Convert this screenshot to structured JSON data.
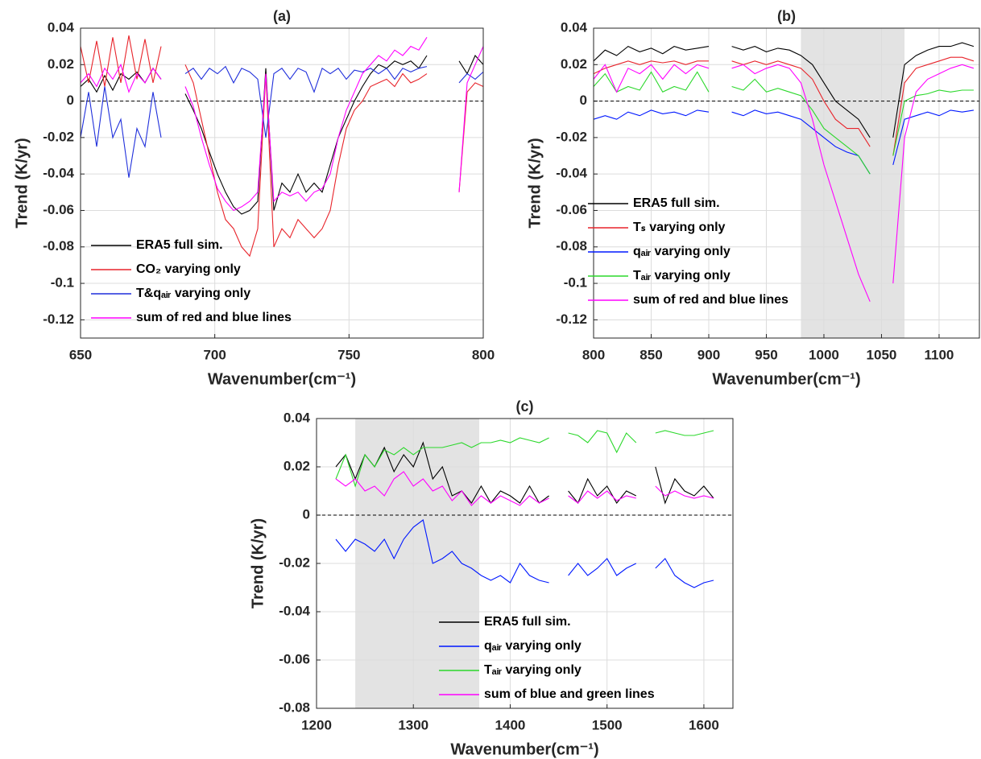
{
  "chart_data": [
    {
      "type": "line",
      "title": "(a)",
      "xlabel": "Wavenumber(cm⁻¹)",
      "ylabel": "Trend (K/yr)",
      "xlim": [
        650,
        800
      ],
      "xticks": [
        650,
        700,
        750,
        800
      ],
      "ylim": [
        -0.13,
        0.04
      ],
      "yticks": [
        -0.12,
        -0.1,
        -0.08,
        -0.06,
        -0.04,
        -0.02,
        0,
        0.02,
        0.04
      ],
      "grid": true,
      "hline": 0,
      "legend": "lower left",
      "x": [
        650,
        653,
        656,
        659,
        662,
        665,
        668,
        671,
        674,
        677,
        680,
        683,
        686,
        689,
        692,
        695,
        698,
        701,
        704,
        707,
        710,
        713,
        716,
        719,
        722,
        725,
        728,
        731,
        734,
        737,
        740,
        743,
        746,
        749,
        752,
        755,
        758,
        761,
        764,
        767,
        770,
        773,
        776,
        779,
        782,
        785,
        788,
        791,
        794,
        797,
        800
      ],
      "series": [
        {
          "name": "ERA5 full sim.",
          "color": "#000000",
          "values": [
            0.008,
            0.012,
            0.005,
            0.014,
            0.006,
            0.015,
            0.012,
            0.016,
            0.01,
            0.018,
            0.012,
            null,
            null,
            0.004,
            -0.005,
            -0.015,
            -0.028,
            -0.04,
            -0.05,
            -0.058,
            -0.062,
            -0.06,
            -0.055,
            0.018,
            -0.06,
            -0.045,
            -0.05,
            -0.04,
            -0.05,
            -0.045,
            -0.05,
            -0.035,
            -0.02,
            -0.01,
            0.0,
            0.008,
            0.015,
            0.02,
            0.018,
            0.022,
            0.02,
            0.022,
            0.018,
            0.025,
            null,
            null,
            null,
            0.022,
            0.015,
            0.025,
            0.02
          ]
        },
        {
          "name": "CO₂ varying only",
          "color": "#e8242b",
          "values": [
            0.03,
            0.01,
            0.033,
            0.008,
            0.035,
            0.01,
            0.036,
            0.012,
            0.034,
            0.01,
            0.03,
            null,
            null,
            0.02,
            0.01,
            -0.01,
            -0.03,
            -0.05,
            -0.065,
            -0.07,
            -0.08,
            -0.085,
            -0.07,
            0.015,
            -0.08,
            -0.07,
            -0.075,
            -0.065,
            -0.07,
            -0.075,
            -0.07,
            -0.06,
            -0.035,
            -0.015,
            -0.005,
            0.0,
            0.008,
            0.01,
            0.012,
            0.008,
            0.015,
            0.01,
            0.012,
            0.015,
            null,
            null,
            null,
            -0.05,
            0.005,
            0.01,
            0.008
          ]
        },
        {
          "name": "T&qₐᵢᵣ varying only",
          "color": "#1f2fdb",
          "values": [
            -0.02,
            0.005,
            -0.025,
            0.008,
            -0.02,
            -0.01,
            -0.042,
            -0.015,
            -0.025,
            0.005,
            -0.02,
            null,
            null,
            0.015,
            0.018,
            0.012,
            0.018,
            0.015,
            0.019,
            0.01,
            0.018,
            0.016,
            0.012,
            -0.02,
            0.015,
            0.018,
            0.012,
            0.018,
            0.016,
            0.005,
            0.018,
            0.015,
            0.018,
            0.012,
            0.017,
            0.016,
            0.018,
            0.015,
            0.018,
            0.012,
            0.018,
            0.016,
            0.018,
            0.019,
            null,
            null,
            null,
            0.01,
            0.015,
            0.012,
            0.016
          ]
        },
        {
          "name": "sum of red and blue lines",
          "color": "#ff00ff",
          "values": [
            0.01,
            0.015,
            0.008,
            0.018,
            0.012,
            0.02,
            0.005,
            0.015,
            0.01,
            0.018,
            0.012,
            null,
            null,
            0.008,
            -0.003,
            -0.02,
            -0.035,
            -0.048,
            -0.055,
            -0.06,
            -0.058,
            -0.055,
            -0.05,
            0.015,
            -0.055,
            -0.05,
            -0.052,
            -0.05,
            -0.055,
            -0.05,
            -0.048,
            -0.04,
            -0.02,
            -0.005,
            0.005,
            0.015,
            0.02,
            0.025,
            0.022,
            0.028,
            0.025,
            0.03,
            0.028,
            0.035,
            null,
            null,
            null,
            -0.05,
            0.01,
            0.02,
            0.03
          ]
        }
      ]
    },
    {
      "type": "line",
      "title": "(b)",
      "xlabel": "Wavenumber(cm⁻¹)",
      "ylabel": "Trend (K/yr)",
      "xlim": [
        800,
        1135
      ],
      "xticks": [
        800,
        850,
        900,
        950,
        1000,
        1050,
        1100
      ],
      "ylim": [
        -0.13,
        0.04
      ],
      "yticks": [
        -0.12,
        -0.1,
        -0.08,
        -0.06,
        -0.04,
        -0.02,
        0,
        0.02,
        0.04
      ],
      "grid": true,
      "hline": 0,
      "shade": [
        980,
        1070
      ],
      "legend": "center left",
      "x": [
        800,
        810,
        820,
        830,
        840,
        850,
        860,
        870,
        880,
        890,
        900,
        910,
        920,
        930,
        940,
        950,
        960,
        970,
        980,
        990,
        1000,
        1010,
        1020,
        1030,
        1040,
        1050,
        1060,
        1070,
        1080,
        1090,
        1100,
        1110,
        1120,
        1130
      ],
      "series": [
        {
          "name": "ERA5 full sim.",
          "color": "#000000",
          "values": [
            0.022,
            0.028,
            0.025,
            0.03,
            0.027,
            0.029,
            0.026,
            0.03,
            0.028,
            0.029,
            0.03,
            null,
            0.03,
            0.028,
            0.03,
            0.027,
            0.029,
            0.028,
            0.025,
            0.02,
            0.01,
            0.0,
            -0.005,
            -0.01,
            -0.02,
            null,
            -0.02,
            0.02,
            0.025,
            0.028,
            0.03,
            0.03,
            0.032,
            0.03
          ]
        },
        {
          "name": "Tₛ varying only",
          "color": "#e8242b",
          "values": [
            0.015,
            0.018,
            0.02,
            0.022,
            0.02,
            0.022,
            0.021,
            0.022,
            0.02,
            0.022,
            0.022,
            null,
            0.022,
            0.02,
            0.022,
            0.02,
            0.022,
            0.02,
            0.018,
            0.012,
            0.0,
            -0.01,
            -0.015,
            -0.015,
            -0.025,
            null,
            -0.03,
            0.01,
            0.018,
            0.02,
            0.022,
            0.024,
            0.024,
            0.022
          ]
        },
        {
          "name": "qₐᵢᵣ varying only",
          "color": "#0018ff",
          "values": [
            -0.01,
            -0.008,
            -0.01,
            -0.006,
            -0.008,
            -0.005,
            -0.007,
            -0.006,
            -0.008,
            -0.005,
            -0.006,
            null,
            -0.006,
            -0.008,
            -0.005,
            -0.007,
            -0.006,
            -0.008,
            -0.01,
            -0.015,
            -0.02,
            -0.025,
            -0.028,
            -0.03,
            -0.04,
            null,
            -0.035,
            -0.01,
            -0.008,
            -0.006,
            -0.008,
            -0.005,
            -0.006,
            -0.005
          ]
        },
        {
          "name": "Tₐᵢᵣ varying only",
          "color": "#2bd82b",
          "values": [
            0.008,
            0.015,
            0.005,
            0.008,
            0.006,
            0.016,
            0.005,
            0.008,
            0.006,
            0.016,
            0.005,
            null,
            0.008,
            0.006,
            0.012,
            0.005,
            0.007,
            0.005,
            0.003,
            -0.005,
            -0.015,
            -0.02,
            -0.025,
            -0.03,
            -0.04,
            null,
            -0.03,
            0.0,
            0.003,
            0.004,
            0.006,
            0.005,
            0.006,
            0.006
          ]
        },
        {
          "name": "sum of red and blue lines",
          "color": "#ff00ff",
          "values": [
            0.012,
            0.02,
            0.005,
            0.018,
            0.015,
            0.02,
            0.012,
            0.02,
            0.015,
            0.02,
            0.018,
            null,
            0.018,
            0.02,
            0.015,
            0.018,
            0.02,
            0.018,
            0.01,
            -0.01,
            -0.035,
            -0.055,
            -0.075,
            -0.095,
            -0.11,
            null,
            -0.1,
            -0.02,
            0.005,
            0.012,
            0.015,
            0.018,
            0.02,
            0.018
          ]
        }
      ]
    },
    {
      "type": "line",
      "title": "(c)",
      "xlabel": "Wavenumber(cm⁻¹)",
      "ylabel": "Trend (K/yr)",
      "xlim": [
        1200,
        1630
      ],
      "xticks": [
        1200,
        1300,
        1400,
        1500,
        1600
      ],
      "ylim": [
        -0.08,
        0.04
      ],
      "yticks": [
        -0.08,
        -0.06,
        -0.04,
        -0.02,
        0,
        0.02,
        0.04
      ],
      "grid": true,
      "hline": 0,
      "shade": [
        1240,
        1368
      ],
      "legend": "lower center",
      "x": [
        1220,
        1230,
        1240,
        1250,
        1260,
        1270,
        1280,
        1290,
        1300,
        1310,
        1320,
        1330,
        1340,
        1350,
        1360,
        1370,
        1380,
        1390,
        1400,
        1410,
        1420,
        1430,
        1440,
        1450,
        1460,
        1470,
        1480,
        1490,
        1500,
        1510,
        1520,
        1530,
        1540,
        1550,
        1560,
        1570,
        1580,
        1590,
        1600,
        1610
      ],
      "series": [
        {
          "name": "ERA5 full sim.",
          "color": "#000000",
          "values": [
            0.02,
            0.025,
            0.015,
            0.025,
            0.02,
            0.028,
            0.018,
            0.025,
            0.02,
            0.03,
            0.015,
            0.02,
            0.008,
            0.01,
            0.005,
            0.012,
            0.005,
            0.01,
            0.008,
            0.005,
            0.012,
            0.005,
            0.008,
            null,
            0.01,
            0.005,
            0.015,
            0.008,
            0.012,
            0.005,
            0.01,
            0.008,
            null,
            0.02,
            0.005,
            0.015,
            0.01,
            0.008,
            0.012,
            0.007
          ]
        },
        {
          "name": "qₐᵢᵣ varying only",
          "color": "#0018ff",
          "values": [
            -0.01,
            -0.015,
            -0.01,
            -0.012,
            -0.015,
            -0.01,
            -0.018,
            -0.01,
            -0.005,
            -0.002,
            -0.02,
            -0.018,
            -0.015,
            -0.02,
            -0.022,
            -0.025,
            -0.027,
            -0.025,
            -0.028,
            -0.02,
            -0.025,
            -0.027,
            -0.028,
            null,
            -0.025,
            -0.02,
            -0.025,
            -0.022,
            -0.018,
            -0.025,
            -0.022,
            -0.02,
            null,
            -0.022,
            -0.018,
            -0.025,
            -0.028,
            -0.03,
            -0.028,
            -0.027
          ]
        },
        {
          "name": "Tₐᵢᵣ varying only",
          "color": "#2bd82b",
          "values": [
            0.015,
            0.025,
            0.012,
            0.025,
            0.02,
            0.027,
            0.025,
            0.028,
            0.025,
            0.028,
            0.028,
            0.028,
            0.029,
            0.03,
            0.028,
            0.03,
            0.03,
            0.031,
            0.03,
            0.032,
            0.031,
            0.03,
            0.032,
            null,
            0.034,
            0.033,
            0.03,
            0.035,
            0.034,
            0.026,
            0.034,
            0.03,
            null,
            0.034,
            0.035,
            0.034,
            0.033,
            0.033,
            0.034,
            0.035
          ]
        },
        {
          "name": "sum of blue and green lines",
          "color": "#ff00ff",
          "values": [
            0.015,
            0.012,
            0.015,
            0.01,
            0.012,
            0.008,
            0.015,
            0.018,
            0.012,
            0.015,
            0.01,
            0.012,
            0.006,
            0.01,
            0.004,
            0.008,
            0.005,
            0.008,
            0.006,
            0.004,
            0.008,
            0.005,
            0.007,
            null,
            0.008,
            0.005,
            0.01,
            0.007,
            0.01,
            0.006,
            0.008,
            0.007,
            null,
            0.012,
            0.008,
            0.01,
            0.008,
            0.007,
            0.008,
            0.007
          ]
        }
      ]
    }
  ]
}
